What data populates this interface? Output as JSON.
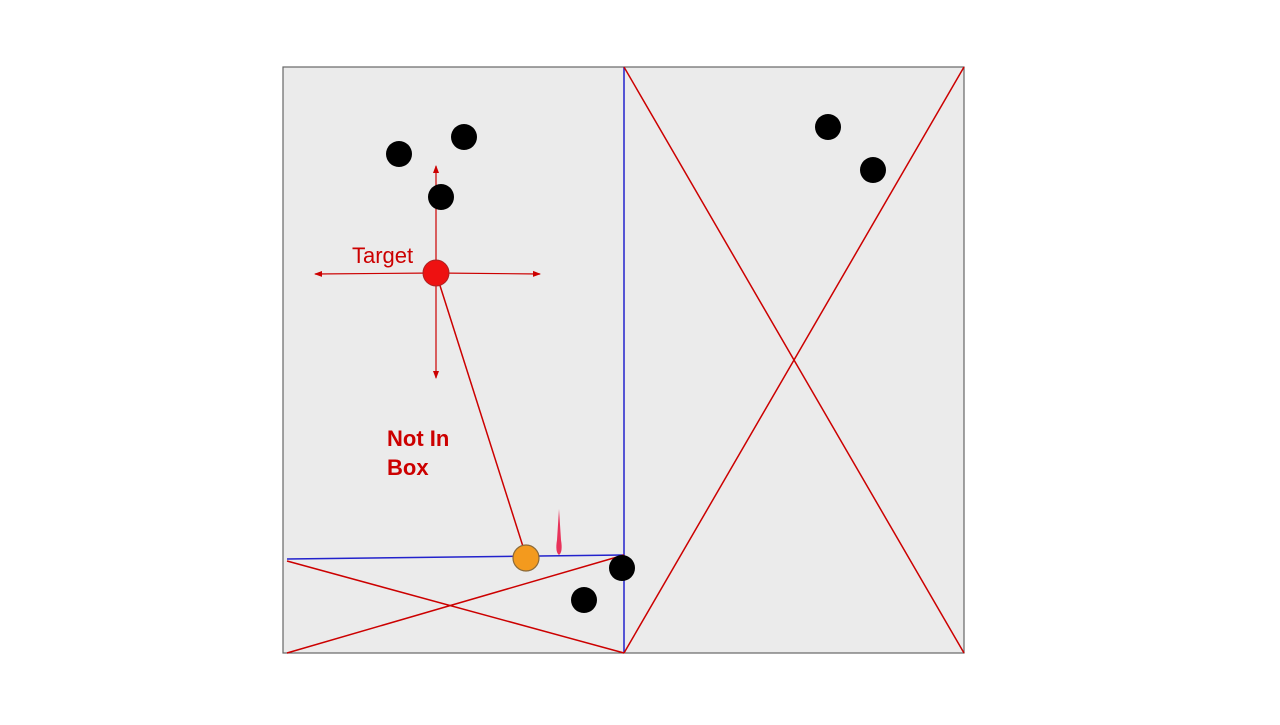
{
  "labels": {
    "target": "Target",
    "status_line1": "Not In",
    "status_line2": "Box"
  },
  "colors": {
    "background": "#ffffff",
    "panel_fill": "#ebebeb",
    "panel_border": "#666666",
    "red": "#cc0000",
    "target_red": "#ee1111",
    "blue": "#2222cc",
    "black": "#000000",
    "orange": "#f39a1e",
    "pink": "#e8325a"
  },
  "icons": {
    "target": "target-dot-icon",
    "cursor": "orange-cursor-dot-icon",
    "obstacle": "black-dot-icon",
    "crosshair": "four-way-arrow-icon",
    "pointer": "pink-needle-icon"
  }
}
